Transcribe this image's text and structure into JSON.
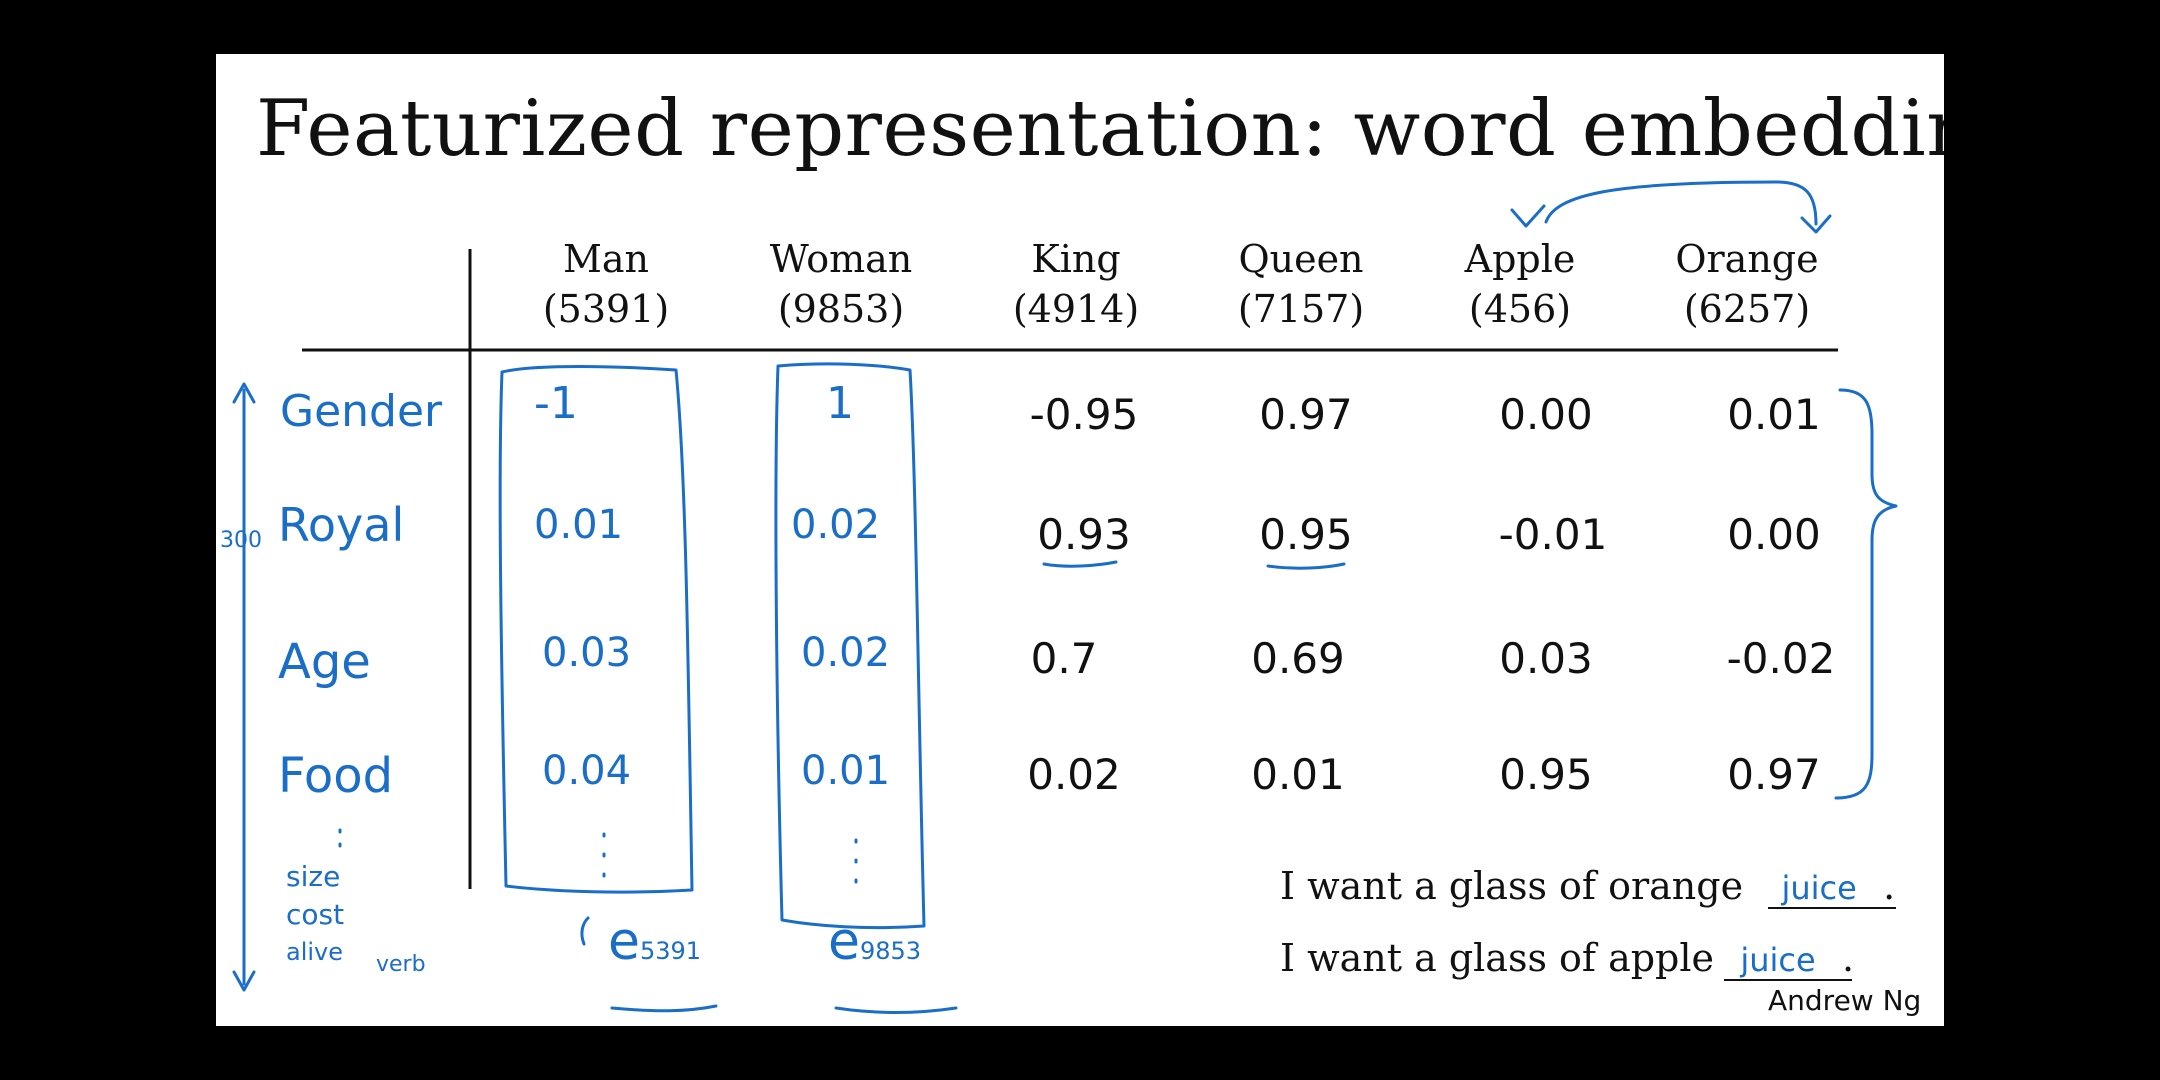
{
  "title": "Featurized representation: word embedding",
  "columns": [
    {
      "word": "Man",
      "index": "(5391)"
    },
    {
      "word": "Woman",
      "index": "(9853)"
    },
    {
      "word": "King",
      "index": "(4914)"
    },
    {
      "word": "Queen",
      "index": "(7157)"
    },
    {
      "word": "Apple",
      "index": "(456)"
    },
    {
      "word": "Orange",
      "index": "(6257)"
    }
  ],
  "features": [
    "Gender",
    "Royal",
    "Age",
    "Food"
  ],
  "extra_features": [
    "size",
    "cost",
    "alive",
    "verb"
  ],
  "dimension_note": "300",
  "values": {
    "man": [
      "-1",
      "0.01",
      "0.03",
      "0.04"
    ],
    "woman": [
      "1",
      "0.02",
      "0.02",
      "0.01"
    ],
    "king": [
      "-0.95",
      "0.93",
      "0.7",
      "0.02"
    ],
    "queen": [
      "0.97",
      "0.95",
      "0.69",
      "0.01"
    ],
    "apple": [
      "0.00",
      "-0.01",
      "0.03",
      "0.95"
    ],
    "orange": [
      "0.01",
      "0.00",
      "-0.02",
      "0.97"
    ]
  },
  "vector_labels": {
    "man": "e",
    "man_sub": "5391",
    "woman": "e",
    "woman_sub": "9853"
  },
  "sentences": [
    {
      "text": "I want a glass of orange",
      "blank": "juice",
      "end": "."
    },
    {
      "text": "I want a glass of apple",
      "blank": "juice",
      "end": "."
    }
  ],
  "credit": "Andrew Ng",
  "colors": {
    "ink": "#1a6ec7",
    "text": "#111111",
    "background": "#ffffff",
    "frame": "#000000"
  }
}
